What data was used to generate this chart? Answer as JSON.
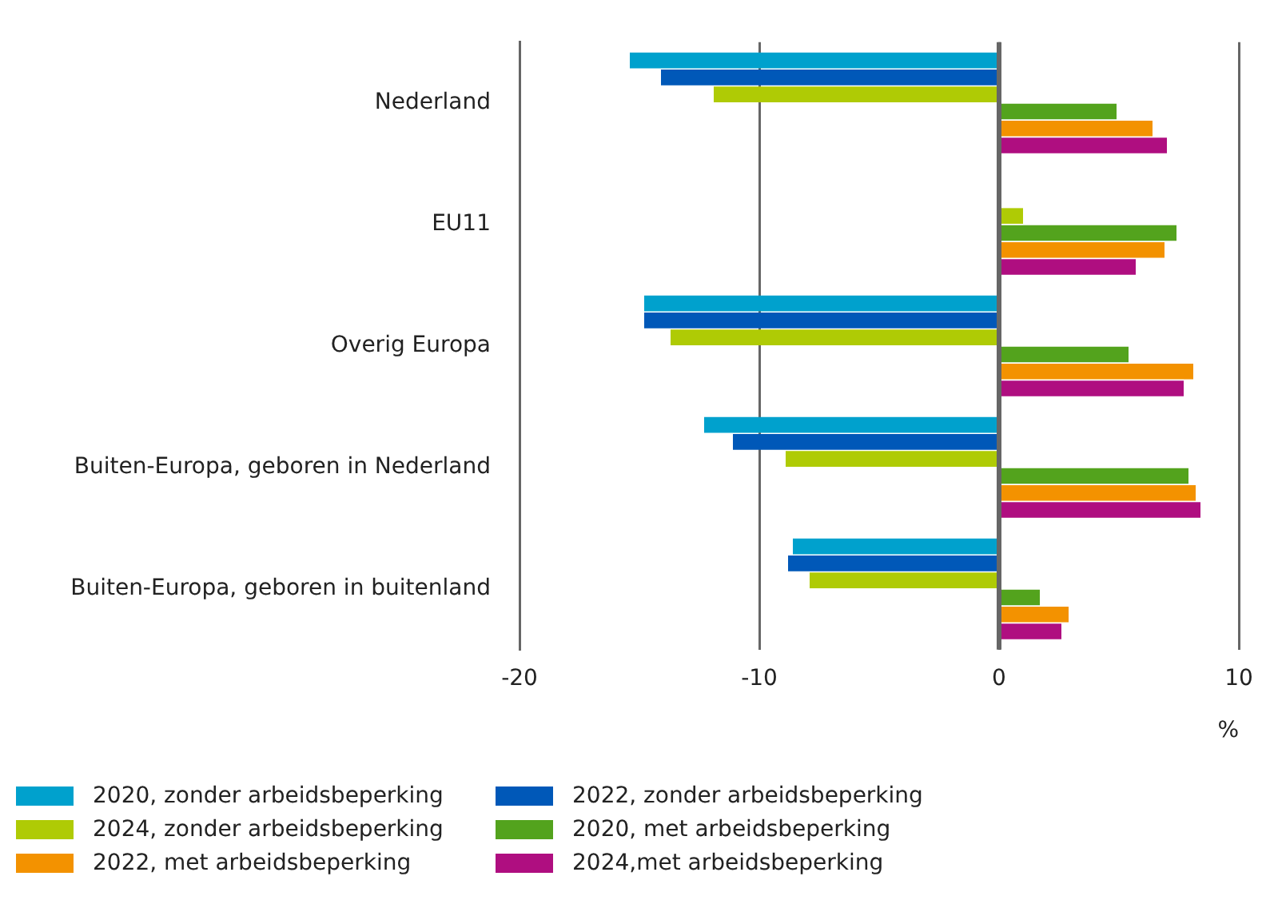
{
  "chart_data": {
    "type": "bar",
    "orientation": "horizontal",
    "categories": [
      "Nederland",
      "EU11",
      "Overig Europa",
      "Buiten-Europa, geboren in Nederland",
      "Buiten-Europa, geboren in buitenland"
    ],
    "series": [
      {
        "name": "2020, zonder arbeidsbeperking",
        "color": "#00a1cd",
        "values": [
          -15.4,
          null,
          -14.8,
          -12.3,
          -8.6
        ]
      },
      {
        "name": "2022, zonder arbeidsbeperking",
        "color": "#0058b8",
        "values": [
          -14.1,
          null,
          -14.8,
          -11.1,
          -8.8
        ]
      },
      {
        "name": "2024, zonder arbeidsbeperking",
        "color": "#afcb05",
        "values": [
          -11.9,
          1.0,
          -13.7,
          -8.9,
          -7.9
        ]
      },
      {
        "name": "2020, met arbeidsbeperking",
        "color": "#53a31d",
        "values": [
          4.9,
          7.4,
          5.4,
          7.9,
          1.7
        ]
      },
      {
        "name": "2022, met arbeidsbeperking",
        "color": "#f39200",
        "values": [
          6.4,
          6.9,
          8.1,
          8.2,
          2.9
        ]
      },
      {
        "name": "2024,met arbeidsbeperking",
        "color": "#af0e80",
        "values": [
          7.0,
          5.7,
          7.7,
          8.4,
          2.6
        ]
      }
    ],
    "xlim": [
      -20,
      10
    ],
    "xticks": [
      -20,
      -10,
      0,
      10
    ],
    "xlabel": "%",
    "grid": "x",
    "ref_lines": [
      {
        "axis": "x",
        "value": 0,
        "color": "#666666"
      }
    ],
    "legend": "bottom"
  }
}
